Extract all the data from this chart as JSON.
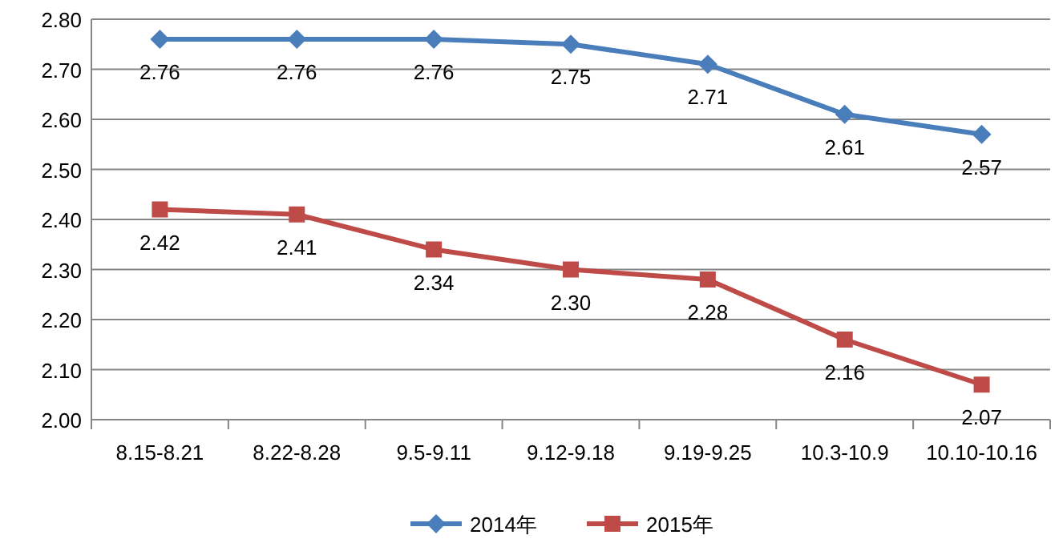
{
  "chart_data": {
    "type": "line",
    "categories": [
      "8.15-8.21",
      "8.22-8.28",
      "9.5-9.11",
      "9.12-9.18",
      "9.19-9.25",
      "10.3-10.9",
      "10.10-10.16"
    ],
    "series": [
      {
        "name": "2014年",
        "color": "#4a7ebb",
        "marker": "diamond",
        "values": [
          2.76,
          2.76,
          2.76,
          2.75,
          2.71,
          2.61,
          2.57
        ],
        "value_labels": [
          "2.76",
          "2.76",
          "2.76",
          "2.75",
          "2.71",
          "2.61",
          "2.57"
        ]
      },
      {
        "name": "2015年",
        "color": "#be4b48",
        "marker": "square",
        "values": [
          2.42,
          2.41,
          2.34,
          2.3,
          2.28,
          2.16,
          2.07
        ],
        "value_labels": [
          "2.42",
          "2.41",
          "2.34",
          "2.30",
          "2.28",
          "2.16",
          "2.07"
        ]
      }
    ],
    "ylim": [
      2.0,
      2.8
    ],
    "yticks": [
      {
        "value": 2.0,
        "label": "2.00"
      },
      {
        "value": 2.1,
        "label": "2.10"
      },
      {
        "value": 2.2,
        "label": "2.20"
      },
      {
        "value": 2.3,
        "label": "2.30"
      },
      {
        "value": 2.4,
        "label": "2.40"
      },
      {
        "value": 2.5,
        "label": "2.50"
      },
      {
        "value": 2.6,
        "label": "2.60"
      },
      {
        "value": 2.7,
        "label": "2.70"
      },
      {
        "value": 2.8,
        "label": "2.80"
      }
    ],
    "grid": "y",
    "legend": "bottom"
  }
}
